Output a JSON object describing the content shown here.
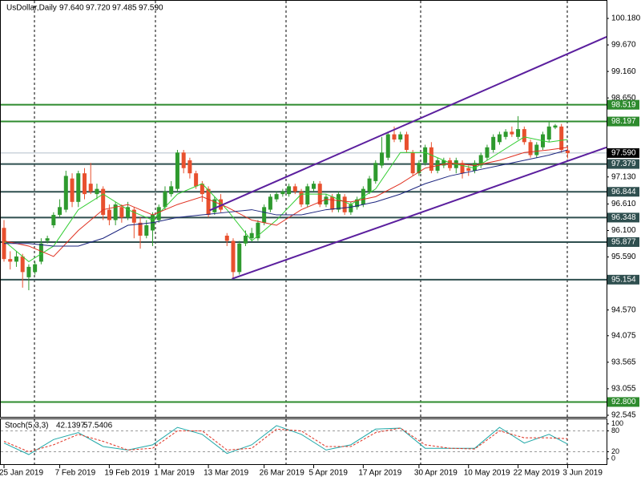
{
  "chart_data": [
    {
      "type": "candlestick",
      "title": "UsDollar,Daily",
      "ohlc_labels": [
        "97.640",
        "97.720",
        "97.485",
        "97.590"
      ],
      "categories": [
        "25 Jan 2019",
        null,
        null,
        null,
        null,
        null,
        null,
        null,
        null,
        "7 Feb 2019",
        null,
        null,
        null,
        null,
        null,
        null,
        null,
        "19 Feb 2019",
        null,
        null,
        null,
        null,
        null,
        null,
        null,
        "1 Mar 2019",
        null,
        null,
        null,
        null,
        null,
        null,
        null,
        "13 Mar 2019",
        null,
        null,
        null,
        null,
        null,
        null,
        null,
        null,
        "26 Mar 2019",
        null,
        null,
        null,
        null,
        null,
        null,
        null,
        "5 Apr 2019",
        null,
        null,
        null,
        null,
        null,
        null,
        null,
        "17 Apr 2019",
        null,
        null,
        null,
        null,
        null,
        null,
        null,
        null,
        "30 Apr 2019",
        null,
        null,
        null,
        null,
        null,
        null,
        null,
        "10 May 2019",
        null,
        null,
        null,
        null,
        null,
        null,
        null,
        "22 May 2019",
        null,
        null,
        null,
        null,
        null,
        null,
        null,
        "3 Jun 2019"
      ],
      "open": [
        96.15,
        95.55,
        95.5,
        95.6,
        95.2,
        95.3,
        95.5,
        95.9,
        96.2,
        96.4,
        96.5,
        97.1,
        96.65,
        97.2,
        97.0,
        96.8,
        96.9,
        96.5,
        96.3,
        96.55,
        96.35,
        96.5,
        96.25,
        96.0,
        96.1,
        96.3,
        96.55,
        96.8,
        96.9,
        97.6,
        97.45,
        97.2,
        97.0,
        96.9,
        96.45,
        96.7,
        96.0,
        95.9,
        95.3,
        95.85,
        95.95,
        95.95,
        96.25,
        96.5,
        96.7,
        96.8,
        96.8,
        96.95,
        96.85,
        96.6,
        96.9,
        97.0,
        96.6,
        96.75,
        96.5,
        96.75,
        96.45,
        96.55,
        96.6,
        96.85,
        97.05,
        97.35,
        97.5,
        97.95,
        97.85,
        97.95,
        97.6,
        97.2,
        97.4,
        97.7,
        97.25,
        97.35,
        97.45,
        97.3,
        97.4,
        97.3,
        97.25,
        97.35,
        97.5,
        97.65,
        97.8,
        97.9,
        98.0,
        97.9,
        98.05,
        97.8,
        97.55,
        97.7,
        97.85,
        98.08,
        98.1,
        97.64
      ],
      "high": [
        96.3,
        95.7,
        95.7,
        95.65,
        95.45,
        95.5,
        95.95,
        96.0,
        96.45,
        96.7,
        97.25,
        97.2,
        97.25,
        97.3,
        97.4,
        97.0,
        96.95,
        96.6,
        96.65,
        96.6,
        96.65,
        96.55,
        96.35,
        96.3,
        96.45,
        96.6,
        96.95,
        97.05,
        97.65,
        97.65,
        97.5,
        97.25,
        97.05,
        96.95,
        96.75,
        96.8,
        96.05,
        95.95,
        95.9,
        96.1,
        96.15,
        96.3,
        96.6,
        96.8,
        96.85,
        96.9,
        97.0,
        97.0,
        96.9,
        97.0,
        97.05,
        97.05,
        96.8,
        96.8,
        96.85,
        96.8,
        96.65,
        96.75,
        96.95,
        97.15,
        97.45,
        97.9,
        98.0,
        98.1,
        98.0,
        98.0,
        97.65,
        97.45,
        97.75,
        97.8,
        97.5,
        97.5,
        97.5,
        97.5,
        97.45,
        97.35,
        97.45,
        97.6,
        97.75,
        97.95,
        98.0,
        98.05,
        98.1,
        98.3,
        98.1,
        97.85,
        97.8,
        98.0,
        98.2,
        98.15,
        98.15,
        97.72
      ],
      "low": [
        95.5,
        95.35,
        95.4,
        95.0,
        94.95,
        95.25,
        95.45,
        95.85,
        96.15,
        96.35,
        96.45,
        96.55,
        96.55,
        96.7,
        96.8,
        96.7,
        96.3,
        96.2,
        96.2,
        96.25,
        96.3,
        95.95,
        95.75,
        95.95,
        95.8,
        96.25,
        96.5,
        96.75,
        96.85,
        97.2,
        97.1,
        96.9,
        96.65,
        96.35,
        96.4,
        96.45,
        95.8,
        95.17,
        95.25,
        95.8,
        95.9,
        95.9,
        96.2,
        96.45,
        96.65,
        96.75,
        96.75,
        96.8,
        96.55,
        96.55,
        96.85,
        96.55,
        96.55,
        96.45,
        96.45,
        96.4,
        96.4,
        96.5,
        96.55,
        96.8,
        97.0,
        97.3,
        97.45,
        97.8,
        97.8,
        97.6,
        97.15,
        97.15,
        97.35,
        97.2,
        97.2,
        97.3,
        97.25,
        97.2,
        97.1,
        97.15,
        97.2,
        97.3,
        97.45,
        97.6,
        97.75,
        97.85,
        97.9,
        97.85,
        97.75,
        97.5,
        97.5,
        97.65,
        97.8,
        98.05,
        97.6,
        97.485
      ],
      "close": [
        95.55,
        95.5,
        95.6,
        95.3,
        95.4,
        95.45,
        95.85,
        95.95,
        96.4,
        96.55,
        97.15,
        96.65,
        97.2,
        96.8,
        96.85,
        96.9,
        96.4,
        96.3,
        96.6,
        96.35,
        96.55,
        96.25,
        96.0,
        96.2,
        96.4,
        96.55,
        96.85,
        96.95,
        97.6,
        97.3,
        97.2,
        96.95,
        96.8,
        96.4,
        96.7,
        96.5,
        95.9,
        95.3,
        95.85,
        96.0,
        96.05,
        96.25,
        96.55,
        96.75,
        96.8,
        96.85,
        96.95,
        96.85,
        96.6,
        96.95,
        97.0,
        96.6,
        96.75,
        96.5,
        96.8,
        96.45,
        96.6,
        96.7,
        96.9,
        97.1,
        97.4,
        97.6,
        97.95,
        97.85,
        97.95,
        97.65,
        97.2,
        97.4,
        97.7,
        97.25,
        97.45,
        97.45,
        97.3,
        97.45,
        97.2,
        97.25,
        97.4,
        97.55,
        97.7,
        97.9,
        97.95,
        98.0,
        97.95,
        98.05,
        97.8,
        97.55,
        97.75,
        97.95,
        98.1,
        98.12,
        97.65,
        97.59
      ],
      "up_color": "#2e9a2e",
      "down_color": "#e8502e",
      "series": [
        {
          "color": "#32cd32",
          "x": [
            0,
            4,
            8,
            12,
            16,
            20,
            24,
            28,
            32,
            36,
            40,
            44,
            48,
            52,
            56,
            60,
            64,
            68,
            72,
            76,
            80,
            84,
            88,
            91
          ],
          "values": [
            95.9,
            95.5,
            95.8,
            96.5,
            96.8,
            96.5,
            96.3,
            96.8,
            97.0,
            96.5,
            95.9,
            96.3,
            96.8,
            96.8,
            96.6,
            96.9,
            97.6,
            97.6,
            97.4,
            97.3,
            97.6,
            97.9,
            97.8,
            97.85
          ]
        },
        {
          "color": "#e03020",
          "x": [
            0,
            4,
            8,
            12,
            16,
            20,
            24,
            28,
            32,
            36,
            40,
            44,
            48,
            52,
            56,
            60,
            64,
            68,
            72,
            76,
            80,
            84,
            88,
            91
          ],
          "values": [
            95.9,
            95.8,
            95.6,
            96.1,
            96.5,
            96.6,
            96.4,
            96.6,
            96.75,
            96.55,
            96.3,
            96.2,
            96.5,
            96.7,
            96.65,
            96.75,
            97.0,
            97.3,
            97.4,
            97.35,
            97.45,
            97.6,
            97.65,
            97.7
          ]
        },
        {
          "color": "#1a237e",
          "x": [
            0,
            4,
            8,
            12,
            16,
            20,
            24,
            28,
            32,
            36,
            40,
            44,
            48,
            52,
            56,
            60,
            64,
            68,
            72,
            76,
            80,
            84,
            88,
            91
          ],
          "values": [
            95.85,
            95.85,
            95.8,
            95.8,
            95.95,
            96.2,
            96.25,
            96.35,
            96.4,
            96.45,
            96.5,
            96.4,
            96.4,
            96.5,
            96.55,
            96.65,
            96.8,
            97.0,
            97.15,
            97.25,
            97.35,
            97.45,
            97.55,
            97.65
          ]
        }
      ],
      "trendlines": [
        {
          "color": "#5b1f9e",
          "x": [
            33.2,
            97.3
          ],
          "y": [
            96.486,
            99.826
          ]
        },
        {
          "color": "#5b1f9e",
          "x": [
            36.8,
            97.3
          ],
          "y": [
            95.17,
            97.7
          ]
        }
      ],
      "levels": [
        {
          "value": 98.519,
          "color": "#2e8b2e"
        },
        {
          "value": 98.197,
          "color": "#2e8b2e"
        },
        {
          "value": 97.379,
          "color": "#2f4f4f"
        },
        {
          "value": 96.844,
          "color": "#2f4f4f"
        },
        {
          "value": 96.348,
          "color": "#2f4f4f"
        },
        {
          "value": 95.877,
          "color": "#2f4f4f"
        },
        {
          "value": 95.154,
          "color": "#2f4f4f"
        },
        {
          "value": {
            "value": 92.8,
            "label": "92.800"
          },
          "color": "#2e8b2e"
        }
      ],
      "last_price": {
        "value": 97.59,
        "label": "97.590"
      },
      "ylim": [
        92.514,
        100.519
      ],
      "yticks": [
        {
          "value": 100.18,
          "label": "100.180"
        },
        {
          "value": 99.67,
          "label": "99.670"
        },
        {
          "value": 99.16,
          "label": "99.160"
        },
        {
          "value": 98.65,
          "label": "98.650"
        },
        {
          "value": 97.13,
          "label": "97.130"
        },
        {
          "value": 96.61,
          "label": "96.610"
        },
        {
          "value": 96.1,
          "label": "96.100"
        },
        {
          "value": 95.59,
          "label": "95.590"
        },
        {
          "value": 94.57,
          "label": "94.570"
        },
        94.075,
        93.565,
        93.055,
        92.545
      ]
    },
    {
      "type": "line",
      "title": "Stoch(5,3,3)",
      "x": [
        0,
        4,
        8,
        12,
        16,
        20,
        24,
        28,
        32,
        36,
        40,
        44,
        48,
        52,
        56,
        60,
        64,
        68,
        72,
        76,
        80,
        84,
        88,
        91
      ],
      "series": [
        {
          "color": "#20a8a8",
          "values": [
            45,
            12,
            55,
            75,
            35,
            25,
            40,
            90,
            70,
            15,
            40,
            95,
            70,
            25,
            40,
            85,
            88,
            30,
            30,
            30,
            90,
            45,
            70,
            42.1397
          ]
        },
        {
          "color": "#e03020",
          "dashed": true,
          "values": [
            50,
            20,
            40,
            70,
            50,
            25,
            30,
            80,
            80,
            25,
            30,
            85,
            80,
            35,
            35,
            75,
            88,
            40,
            30,
            28,
            80,
            60,
            60,
            57.5406
          ]
        }
      ],
      "ylim": [
        -15.6,
        113.3
      ],
      "yticks": [
        100,
        80,
        20,
        0
      ],
      "levels": [
        80,
        20
      ]
    }
  ]
}
